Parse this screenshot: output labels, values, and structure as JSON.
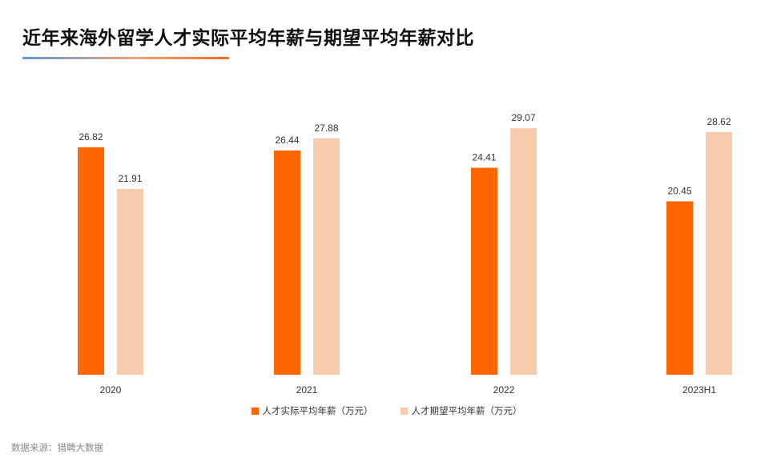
{
  "title": "近年来海外留学人才实际平均年薪与期望平均年薪对比",
  "source": "数据来源：猎聘大数据",
  "colors": {
    "actual": "#ff6600",
    "expected": "#f8cbad"
  },
  "chart_data": {
    "type": "bar",
    "title": "近年来海外留学人才实际平均年薪与期望平均年薪对比",
    "categories": [
      "2020",
      "2021",
      "2022",
      "2023H1"
    ],
    "series": [
      {
        "name": "人才实际平均年薪（万元）",
        "values": [
          26.82,
          26.44,
          24.41,
          20.45
        ]
      },
      {
        "name": "人才期望平均年薪（万元）",
        "values": [
          21.91,
          27.88,
          29.07,
          28.62
        ]
      }
    ],
    "xlabel": "",
    "ylabel": "",
    "ylim": [
      0,
      30
    ],
    "grid": false,
    "y_axis_visible": false,
    "data_labels": true,
    "legend_position": "bottom"
  }
}
